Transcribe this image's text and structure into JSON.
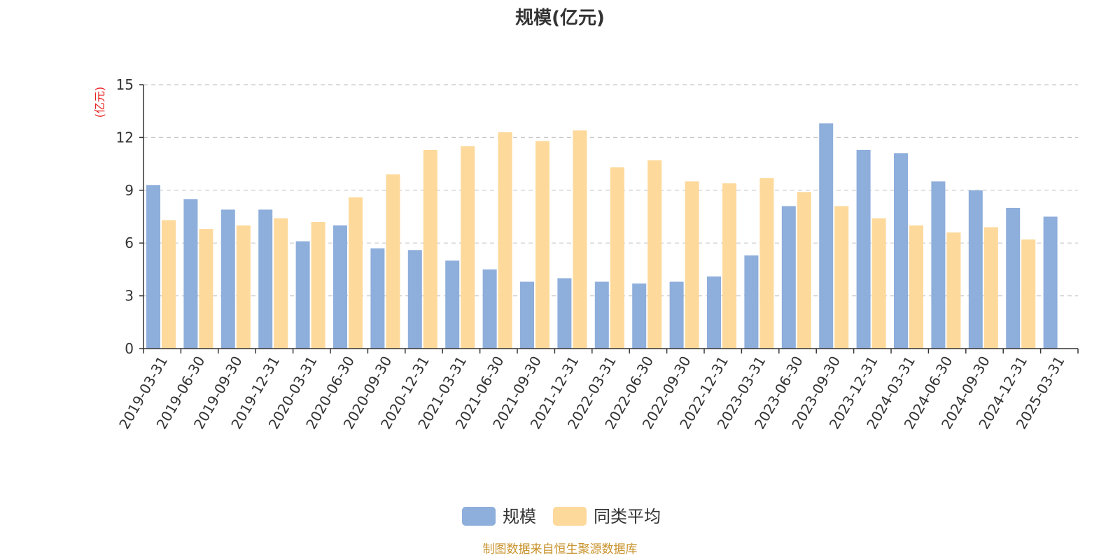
{
  "chart_data": {
    "type": "bar",
    "title": "规模(亿元)",
    "ylabel": "(亿元)",
    "xlabel": "",
    "ylim": [
      0,
      15
    ],
    "yticks": [
      "0",
      "3",
      "6",
      "9",
      "12",
      "15"
    ],
    "grid": true,
    "legend_position": "bottom",
    "categories": [
      "2019-03-31",
      "2019-06-30",
      "2019-09-30",
      "2019-12-31",
      "2020-03-31",
      "2020-06-30",
      "2020-09-30",
      "2020-12-31",
      "2021-03-31",
      "2021-06-30",
      "2021-09-30",
      "2021-12-31",
      "2022-03-31",
      "2022-06-30",
      "2022-09-30",
      "2022-12-31",
      "2023-03-31",
      "2023-06-30",
      "2023-09-30",
      "2023-12-31",
      "2024-03-31",
      "2024-06-30",
      "2024-09-30",
      "2024-12-31",
      "2025-03-31"
    ],
    "series": [
      {
        "name": "规模",
        "color": "#8eaedb",
        "values": [
          9.3,
          8.5,
          7.9,
          7.9,
          6.1,
          7.0,
          5.7,
          5.6,
          5.0,
          4.5,
          3.8,
          4.0,
          3.8,
          3.7,
          3.8,
          4.1,
          5.3,
          8.1,
          12.8,
          11.3,
          11.1,
          9.5,
          9.0,
          8.0,
          7.5
        ]
      },
      {
        "name": "同类平均",
        "color": "#fdd99b",
        "values": [
          7.3,
          6.8,
          7.0,
          7.4,
          7.2,
          8.6,
          9.9,
          11.3,
          11.5,
          12.3,
          11.8,
          12.4,
          10.3,
          10.7,
          9.5,
          9.4,
          9.7,
          8.9,
          8.1,
          7.4,
          7.0,
          6.6,
          6.9,
          6.2,
          null
        ]
      }
    ]
  },
  "footer": {
    "source": "制图数据来自恒生聚源数据库"
  }
}
